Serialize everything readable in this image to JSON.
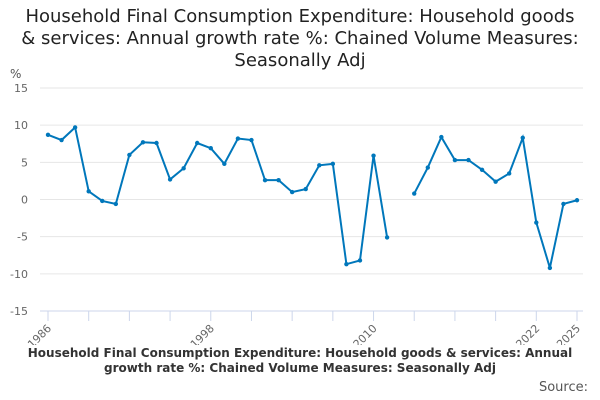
{
  "chart_data": {
    "type": "line",
    "title": "Household Final Consumption Expenditure: Household goods & services: Annual growth rate %: Chained Volume Measures: Seasonally Adj",
    "ylabel": "%",
    "xlabel": "",
    "ylim": [
      -15,
      15
    ],
    "yticks": [
      15,
      10,
      5,
      0,
      -5,
      -10,
      -15
    ],
    "xlim": [
      1986,
      2025
    ],
    "xtick_labels": [
      "1986",
      "1998",
      "2010",
      "2022",
      "2025"
    ],
    "grid": true,
    "color": "#0077bb",
    "x": [
      1986,
      1987,
      1988,
      1989,
      1990,
      1991,
      1992,
      1993,
      1994,
      1995,
      1996,
      1997,
      1998,
      1999,
      2000,
      2001,
      2002,
      2003,
      2004,
      2005,
      2006,
      2007,
      2008,
      2009,
      2010,
      2011,
      2012,
      2013,
      2014,
      2015,
      2016,
      2017,
      2018,
      2019,
      2020,
      2021,
      2022,
      2023,
      2024,
      2025
    ],
    "values": [
      8.7,
      8.0,
      9.7,
      1.1,
      -0.2,
      -0.6,
      6.0,
      7.7,
      7.6,
      2.7,
      4.2,
      7.6,
      6.9,
      4.8,
      8.2,
      8.0,
      2.6,
      2.6,
      1.0,
      1.4,
      4.6,
      4.8,
      -8.7,
      -8.2,
      5.9,
      -5.1,
      null,
      0.8,
      4.3,
      8.4,
      5.3,
      5.3,
      4.0,
      2.4,
      3.5,
      8.3,
      -3.1,
      -9.2,
      -0.6,
      -0.1
    ]
  },
  "footer": {
    "caption": "Household Final Consumption Expenditure: Household goods & services: Annual growth rate %: Chained Volume Measures: Seasonally Adj",
    "source": "Source:"
  }
}
